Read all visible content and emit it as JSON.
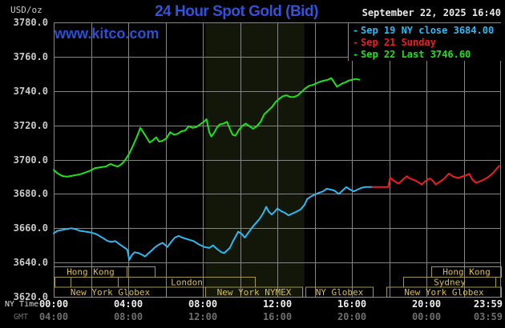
{
  "header": {
    "unit_label": "USD/oz",
    "title": "24 Hour Spot Gold (Bid)",
    "datetime": "September 22, 2025 16:40",
    "watermark": "www.kitco.com"
  },
  "legend": {
    "items": [
      {
        "marker": "-",
        "label": "Sep 19 NY close 3684.00",
        "color": "#2fb9f2"
      },
      {
        "marker": "-",
        "label": "Sep 21 Sunday",
        "color": "#f11d1d"
      },
      {
        "marker": "-",
        "label": "Sep 22 Last 3746.60",
        "color": "#1de21d"
      }
    ]
  },
  "x_axis": {
    "ny_label": "NY Time",
    "gmt_label": "GMT",
    "ticks": [
      {
        "hour": 0,
        "ny": "00:00",
        "gmt": "04:00"
      },
      {
        "hour": 4,
        "ny": "04:00",
        "gmt": "08:00"
      },
      {
        "hour": 8,
        "ny": "08:00",
        "gmt": "12:00"
      },
      {
        "hour": 12,
        "ny": "12:00",
        "gmt": "16:00"
      },
      {
        "hour": 16,
        "ny": "16:00",
        "gmt": "20:00"
      },
      {
        "hour": 20,
        "ny": "20:00",
        "gmt": "00:00"
      },
      {
        "hour": 23.983,
        "ny": "23:59",
        "gmt": "03:59"
      }
    ]
  },
  "sessions": {
    "rows": [
      {
        "segments": [
          {
            "label": "Hong Kong",
            "start": 0,
            "end": 3.9
          },
          {
            "label": "",
            "start": 3.9,
            "end": 5.4
          },
          {
            "label": "Hong Kong",
            "start": 20.25,
            "end": 24
          }
        ]
      },
      {
        "segments": [
          {
            "label": "",
            "start": 0.05,
            "end": 0.9
          },
          {
            "label": "",
            "start": 0.9,
            "end": 3.45
          },
          {
            "label": "London",
            "start": 3.45,
            "end": 10.8
          },
          {
            "label": "Sydney",
            "start": 18.75,
            "end": 23.7
          }
        ]
      },
      {
        "segments": [
          {
            "label": "New York Globex",
            "start": 0,
            "end": 6.0
          },
          {
            "label": "",
            "start": 6.0,
            "end": 8.0
          },
          {
            "label": "New York NYMEX",
            "start": 8.15,
            "end": 13.35
          },
          {
            "label": "NY Globex",
            "start": 13.5,
            "end": 17.1
          },
          {
            "label": "New York Globex",
            "start": 17.85,
            "end": 24
          }
        ]
      }
    ]
  },
  "colors": {
    "background": "#000000",
    "grid": "#858585",
    "band": "#121709",
    "session_border": "#a3954f",
    "session_text": "#d9bd55"
  },
  "chart_data": {
    "type": "line",
    "title": "24 Hour Spot Gold (Bid)",
    "ylabel": "USD/oz",
    "ylim": [
      3620,
      3780
    ],
    "y_tick_step": 20,
    "x_hours": [
      0,
      24
    ],
    "x_grid_step_hours": 2,
    "grid": true,
    "legend_position": "top-right",
    "highlight_band_hours": [
      8.15,
      13.45
    ],
    "series": [
      {
        "name": "Sep 19 NY close",
        "close_value": 3684.0,
        "color": "#2fb9f2",
        "points": [
          [
            0,
            3657
          ],
          [
            0.2,
            3658.5
          ],
          [
            0.45,
            3659
          ],
          [
            0.7,
            3659.5
          ],
          [
            0.95,
            3660
          ],
          [
            1.15,
            3659.5
          ],
          [
            1.4,
            3658.5
          ],
          [
            1.7,
            3658
          ],
          [
            2.0,
            3657.5
          ],
          [
            2.3,
            3656.5
          ],
          [
            2.6,
            3654.5
          ],
          [
            2.9,
            3652.5
          ],
          [
            3.1,
            3652
          ],
          [
            3.3,
            3652.5
          ],
          [
            3.55,
            3650.5
          ],
          [
            3.75,
            3649
          ],
          [
            3.95,
            3647.5
          ],
          [
            4.05,
            3641.5
          ],
          [
            4.2,
            3644.5
          ],
          [
            4.35,
            3646
          ],
          [
            4.55,
            3645.5
          ],
          [
            4.75,
            3644.5
          ],
          [
            4.9,
            3643.5
          ],
          [
            5.05,
            3645
          ],
          [
            5.25,
            3647
          ],
          [
            5.45,
            3649
          ],
          [
            5.65,
            3650.5
          ],
          [
            5.85,
            3651.5
          ],
          [
            6.0,
            3650
          ],
          [
            6.1,
            3649
          ],
          [
            6.3,
            3652
          ],
          [
            6.5,
            3654.5
          ],
          [
            6.7,
            3655.5
          ],
          [
            6.9,
            3654.5
          ],
          [
            7.2,
            3653.5
          ],
          [
            7.5,
            3652.5
          ],
          [
            7.8,
            3650.5
          ],
          [
            8.1,
            3649
          ],
          [
            8.35,
            3648.5
          ],
          [
            8.55,
            3650
          ],
          [
            8.75,
            3648
          ],
          [
            9.0,
            3646
          ],
          [
            9.15,
            3645.5
          ],
          [
            9.3,
            3647
          ],
          [
            9.45,
            3648.5
          ],
          [
            9.6,
            3652
          ],
          [
            9.75,
            3655
          ],
          [
            9.9,
            3658
          ],
          [
            10.1,
            3656.5
          ],
          [
            10.25,
            3654.5
          ],
          [
            10.45,
            3657.5
          ],
          [
            10.65,
            3660.5
          ],
          [
            10.85,
            3663
          ],
          [
            11.05,
            3665.5
          ],
          [
            11.25,
            3669
          ],
          [
            11.4,
            3672.5
          ],
          [
            11.55,
            3669.5
          ],
          [
            11.7,
            3668
          ],
          [
            11.85,
            3669.5
          ],
          [
            12.0,
            3671.5
          ],
          [
            12.2,
            3670
          ],
          [
            12.4,
            3669
          ],
          [
            12.6,
            3667.5
          ],
          [
            12.8,
            3668.5
          ],
          [
            13.0,
            3669.5
          ],
          [
            13.25,
            3671
          ],
          [
            13.45,
            3673.5
          ],
          [
            13.6,
            3677
          ],
          [
            13.8,
            3678.5
          ],
          [
            14.0,
            3679.5
          ],
          [
            14.2,
            3680.5
          ],
          [
            14.45,
            3681.5
          ],
          [
            14.65,
            3683
          ],
          [
            14.85,
            3682.5
          ],
          [
            15.05,
            3682
          ],
          [
            15.3,
            3680
          ],
          [
            15.5,
            3682
          ],
          [
            15.7,
            3684
          ],
          [
            15.9,
            3682.5
          ],
          [
            16.1,
            3681.5
          ],
          [
            16.3,
            3682.5
          ],
          [
            16.5,
            3683.5
          ],
          [
            16.7,
            3684
          ],
          [
            17.1,
            3684
          ]
        ]
      },
      {
        "name": "Sep 21 Sunday",
        "color": "#f11d1d",
        "points": [
          [
            17.1,
            3684
          ],
          [
            17.55,
            3684
          ],
          [
            17.95,
            3684
          ],
          [
            18.05,
            3689.5
          ],
          [
            18.2,
            3688
          ],
          [
            18.35,
            3687
          ],
          [
            18.5,
            3686
          ],
          [
            18.65,
            3687.5
          ],
          [
            18.8,
            3689
          ],
          [
            18.95,
            3690.3
          ],
          [
            19.1,
            3689
          ],
          [
            19.25,
            3688.5
          ],
          [
            19.45,
            3687.5
          ],
          [
            19.6,
            3686.5
          ],
          [
            19.75,
            3685.5
          ],
          [
            19.9,
            3687
          ],
          [
            20.05,
            3688.4
          ],
          [
            20.2,
            3689
          ],
          [
            20.35,
            3687.5
          ],
          [
            20.5,
            3685.5
          ],
          [
            20.7,
            3687
          ],
          [
            20.9,
            3688.4
          ],
          [
            21.05,
            3690
          ],
          [
            21.2,
            3691.9
          ],
          [
            21.45,
            3690
          ],
          [
            21.7,
            3689.3
          ],
          [
            21.95,
            3690.2
          ],
          [
            22.15,
            3691
          ],
          [
            22.3,
            3691.7
          ],
          [
            22.45,
            3688.5
          ],
          [
            22.65,
            3686.5
          ],
          [
            22.85,
            3687.2
          ],
          [
            23.05,
            3688.2
          ],
          [
            23.25,
            3689.4
          ],
          [
            23.45,
            3691
          ],
          [
            23.6,
            3692.5
          ],
          [
            23.75,
            3694.5
          ],
          [
            23.9,
            3696.3
          ]
        ]
      },
      {
        "name": "Sep 22 Last",
        "last_value": 3746.6,
        "color": "#1de21d",
        "points": [
          [
            0,
            3694
          ],
          [
            0.2,
            3692
          ],
          [
            0.45,
            3690.5
          ],
          [
            0.7,
            3690
          ],
          [
            0.95,
            3690.5
          ],
          [
            1.2,
            3691
          ],
          [
            1.45,
            3691.5
          ],
          [
            1.7,
            3692.5
          ],
          [
            1.95,
            3693.5
          ],
          [
            2.2,
            3695
          ],
          [
            2.5,
            3695.5
          ],
          [
            2.8,
            3696
          ],
          [
            3.05,
            3697.5
          ],
          [
            3.25,
            3696.5
          ],
          [
            3.45,
            3696
          ],
          [
            3.65,
            3697.5
          ],
          [
            3.85,
            3700
          ],
          [
            4.05,
            3703.5
          ],
          [
            4.25,
            3708
          ],
          [
            4.45,
            3713
          ],
          [
            4.65,
            3718.5
          ],
          [
            4.8,
            3716
          ],
          [
            4.95,
            3713.5
          ],
          [
            5.15,
            3710
          ],
          [
            5.35,
            3711.5
          ],
          [
            5.5,
            3713
          ],
          [
            5.65,
            3710.5
          ],
          [
            5.85,
            3711
          ],
          [
            6.05,
            3712.5
          ],
          [
            6.25,
            3716
          ],
          [
            6.45,
            3714.5
          ],
          [
            6.65,
            3715
          ],
          [
            6.85,
            3716.5
          ],
          [
            7.05,
            3717
          ],
          [
            7.25,
            3719.5
          ],
          [
            7.45,
            3718.5
          ],
          [
            7.65,
            3719
          ],
          [
            7.85,
            3720.5
          ],
          [
            8.05,
            3722
          ],
          [
            8.2,
            3723.5
          ],
          [
            8.35,
            3716
          ],
          [
            8.45,
            3713.5
          ],
          [
            8.6,
            3715.5
          ],
          [
            8.75,
            3718.5
          ],
          [
            8.9,
            3720.5
          ],
          [
            9.1,
            3721
          ],
          [
            9.3,
            3722
          ],
          [
            9.45,
            3718
          ],
          [
            9.6,
            3714.5
          ],
          [
            9.75,
            3714
          ],
          [
            9.95,
            3717.5
          ],
          [
            10.1,
            3719.5
          ],
          [
            10.3,
            3721
          ],
          [
            10.5,
            3719.5
          ],
          [
            10.7,
            3718
          ],
          [
            10.9,
            3719.5
          ],
          [
            11.1,
            3722
          ],
          [
            11.3,
            3726.5
          ],
          [
            11.5,
            3728.5
          ],
          [
            11.7,
            3730.5
          ],
          [
            11.9,
            3733.5
          ],
          [
            12.1,
            3735.5
          ],
          [
            12.3,
            3737
          ],
          [
            12.5,
            3737.5
          ],
          [
            12.7,
            3736.5
          ],
          [
            12.9,
            3736.5
          ],
          [
            13.1,
            3737.5
          ],
          [
            13.3,
            3739.5
          ],
          [
            13.5,
            3741.5
          ],
          [
            13.7,
            3743
          ],
          [
            13.9,
            3743.5
          ],
          [
            14.1,
            3744.5
          ],
          [
            14.3,
            3745.5
          ],
          [
            14.5,
            3746
          ],
          [
            14.7,
            3746.5
          ],
          [
            14.9,
            3747.5
          ],
          [
            15.05,
            3745
          ],
          [
            15.2,
            3742.5
          ],
          [
            15.35,
            3743.5
          ],
          [
            15.5,
            3744.5
          ],
          [
            15.65,
            3745
          ],
          [
            15.8,
            3746
          ],
          [
            16.0,
            3746.5
          ],
          [
            16.2,
            3747
          ],
          [
            16.4,
            3746.6
          ]
        ]
      }
    ]
  }
}
